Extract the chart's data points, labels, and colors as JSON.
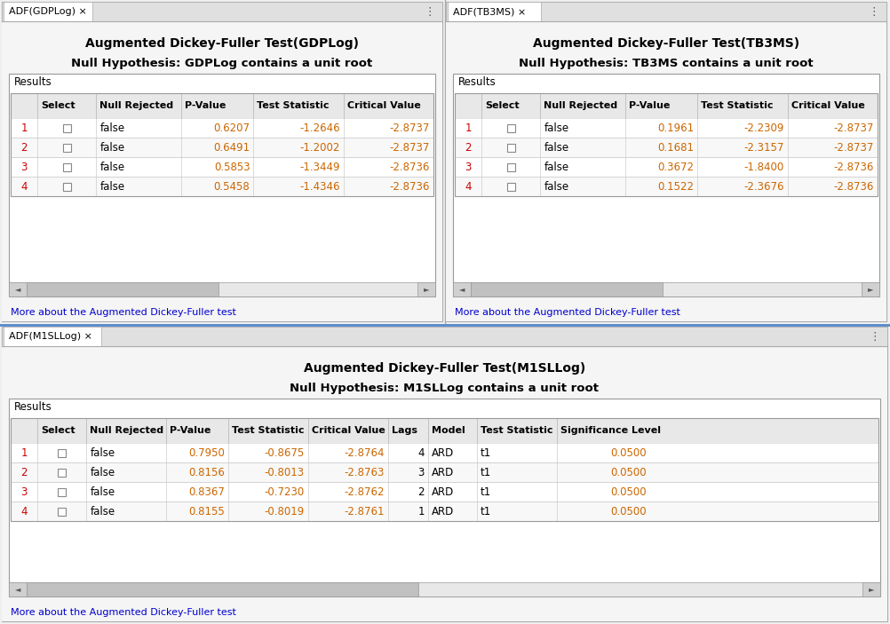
{
  "bg_color": "#f0f0f0",
  "panel_bg": "#ffffff",
  "tab_bg": "#e0e0e0",
  "tab_active_bg": "#ffffff",
  "header_bg": "#e8e8e8",
  "row_colors": [
    "#ffffff",
    "#f5f5f5"
  ],
  "border_color": "#aaaaaa",
  "text_color": "#000000",
  "red_color": "#cc0000",
  "blue_link": "#0000cc",
  "num_color": "#cc6600",
  "panel1": {
    "tab_label": "ADF(GDPLog) ×",
    "title": "Augmented Dickey-Fuller Test(GDPLog)",
    "subtitle": "Null Hypothesis: GDPLog contains a unit root",
    "results_label": "Results",
    "columns": [
      "",
      "Select",
      "Null Rejected",
      "P-Value",
      "Test Statistic",
      "Critical Value"
    ],
    "rows": [
      [
        "1",
        "",
        "false",
        "0.6207",
        "-1.2646",
        "-2.8737"
      ],
      [
        "2",
        "",
        "false",
        "0.6491",
        "-1.2002",
        "-2.8737"
      ],
      [
        "3",
        "",
        "false",
        "0.5853",
        "-1.3449",
        "-2.8736"
      ],
      [
        "4",
        "",
        "false",
        "0.5458",
        "-1.4346",
        "-2.8736"
      ]
    ],
    "link": "More about the Augmented Dickey-Fuller test"
  },
  "panel2": {
    "tab_label": "ADF(TB3MS) ×",
    "title": "Augmented Dickey-Fuller Test(TB3MS)",
    "subtitle": "Null Hypothesis: TB3MS contains a unit root",
    "results_label": "Results",
    "columns": [
      "",
      "Select",
      "Null Rejected",
      "P-Value",
      "Test Statistic",
      "Critical Value"
    ],
    "rows": [
      [
        "1",
        "",
        "false",
        "0.1961",
        "-2.2309",
        "-2.8737"
      ],
      [
        "2",
        "",
        "false",
        "0.1681",
        "-2.3157",
        "-2.8737"
      ],
      [
        "3",
        "",
        "false",
        "0.3672",
        "-1.8400",
        "-2.8736"
      ],
      [
        "4",
        "",
        "false",
        "0.1522",
        "-2.3676",
        "-2.8736"
      ]
    ],
    "link": "More about the Augmented Dickey-Fuller test"
  },
  "panel3": {
    "tab_label": "ADF(M1SLLog) ×",
    "title": "Augmented Dickey-Fuller Test(M1SLLog)",
    "subtitle": "Null Hypothesis: M1SLLog contains a unit root",
    "results_label": "Results",
    "columns": [
      "",
      "Select",
      "Null Rejected",
      "P-Value",
      "Test Statistic",
      "Critical Value",
      "Lags",
      "Model",
      "Test Statistic",
      "Significance Level"
    ],
    "rows": [
      [
        "1",
        "",
        "false",
        "0.7950",
        "-0.8675",
        "-2.8764",
        "4",
        "ARD",
        "t1",
        "0.0500"
      ],
      [
        "2",
        "",
        "false",
        "0.8156",
        "-0.8013",
        "-2.8763",
        "3",
        "ARD",
        "t1",
        "0.0500"
      ],
      [
        "3",
        "",
        "false",
        "0.8367",
        "-0.7230",
        "-2.8762",
        "2",
        "ARD",
        "t1",
        "0.0500"
      ],
      [
        "4",
        "",
        "false",
        "0.8155",
        "-0.8019",
        "-2.8761",
        "1",
        "ARD",
        "t1",
        "0.0500"
      ]
    ],
    "link": "More about the Augmented Dickey-Fuller test"
  }
}
